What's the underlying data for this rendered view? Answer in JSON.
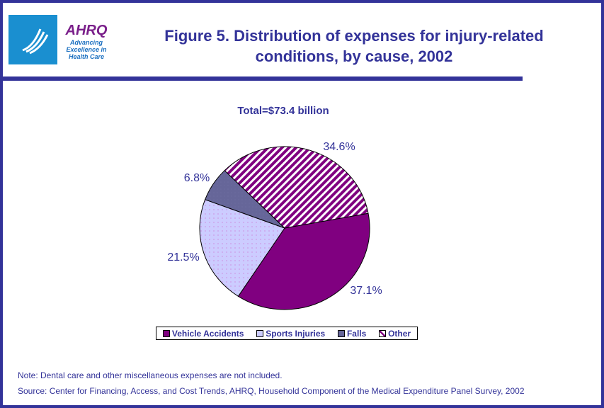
{
  "header": {
    "title_line1": "Figure 5. Distribution of expenses for injury-related",
    "title_line2": "conditions, by cause, 2002",
    "logo_text": "AHRQ Advancing Excellence in Health Care"
  },
  "chart_data": {
    "type": "pie",
    "subtitle": "Total=$73.4 billion",
    "categories": [
      "Vehicle Accidents",
      "Sports Injuries",
      "Falls",
      "Other"
    ],
    "values": [
      37.1,
      21.5,
      6.8,
      34.6
    ],
    "labels": [
      "37.1%",
      "21.5%",
      "6.8%",
      "34.6%"
    ],
    "colors": [
      "#800080",
      "#ccccff",
      "#666699",
      "#800080"
    ],
    "legend_position": "bottom"
  },
  "footer": {
    "note": "Note: Dental care and other miscellaneous expenses are not included.",
    "source": "Source: Center for Financing, Access, and Cost Trends, AHRQ, Household Component of the Medical Expenditure Panel Survey, 2002"
  }
}
